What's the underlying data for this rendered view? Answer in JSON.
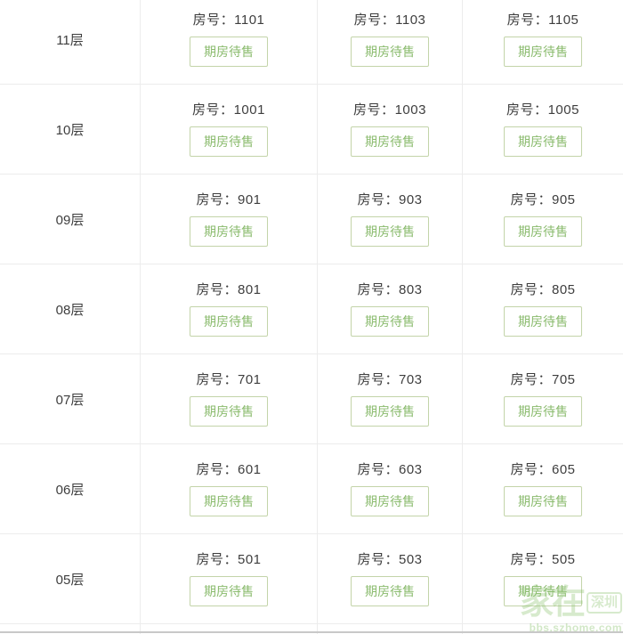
{
  "theme": {
    "line_color": "#ececec",
    "dark_line_color": "#c8c8c8",
    "text_color": "#3e3e3e",
    "badge_text_color": "#8abb6d",
    "badge_border_color": "#c3d4a9",
    "badge_bg_color": "#ffffff",
    "watermark_color": "#8fc573"
  },
  "table": {
    "room_label_prefix": "房号：",
    "status_label": "期房待售",
    "rows": [
      {
        "floor": "11层",
        "rooms": [
          "1101",
          "1103",
          "1105"
        ]
      },
      {
        "floor": "10层",
        "rooms": [
          "1001",
          "1003",
          "1005"
        ]
      },
      {
        "floor": "09层",
        "rooms": [
          "901",
          "903",
          "905"
        ]
      },
      {
        "floor": "08层",
        "rooms": [
          "801",
          "803",
          "805"
        ]
      },
      {
        "floor": "07层",
        "rooms": [
          "701",
          "703",
          "705"
        ]
      },
      {
        "floor": "06层",
        "rooms": [
          "601",
          "603",
          "605"
        ]
      },
      {
        "floor": "05层",
        "rooms": [
          "501",
          "503",
          "505"
        ]
      }
    ]
  },
  "watermark": {
    "brand": "家在",
    "city": "深圳",
    "url": "bbs.szhome.com"
  }
}
